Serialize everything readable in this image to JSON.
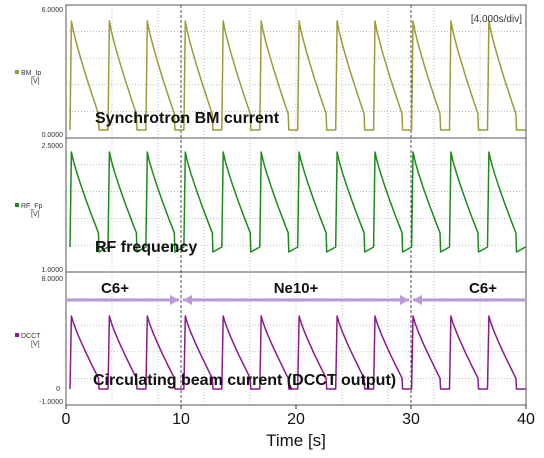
{
  "chart_data": {
    "type": "line",
    "scope_label": "[4.000s/div]",
    "x_axis": {
      "ticks": [
        "0",
        "10",
        "20",
        "30",
        "40"
      ],
      "label": "Time [s]",
      "range": [
        0,
        40
      ]
    },
    "grid": true,
    "panels": [
      {
        "id": "bm",
        "channel_label": "BM_Ip",
        "unit": "[V]",
        "y_top_label": "6.0000",
        "y_bottom_label": "0.0000",
        "caption": "Synchrotron BM current",
        "color": "#9c9a3a",
        "cycle_period_s": 3.3,
        "first_cycle_start_s": 0.35,
        "cycle_count": 12
      },
      {
        "id": "rf",
        "channel_label": "RF_Fp",
        "unit": "[V]",
        "y_top_label": "2.5000",
        "y_bottom_label": "1.0000",
        "caption": "RF frequency",
        "color": "#1a8a1a",
        "cycle_period_s": 3.3,
        "first_cycle_start_s": 0.35,
        "cycle_count": 12
      },
      {
        "id": "dcct",
        "channel_label": "DCCT",
        "unit": "[V]",
        "y_top_label": "8.0000",
        "y_bottom_label": "-1.0000",
        "y_zero_label": "0",
        "caption": "Circulating beam current (DCCT output)",
        "color": "#8a1a8a",
        "cycle_period_s": 3.3,
        "first_cycle_start_s": 0.35,
        "cycle_count": 12
      }
    ],
    "ion_segments": [
      {
        "label": "C6+",
        "start": 0,
        "end": 10
      },
      {
        "label": "Ne10+",
        "start": 10,
        "end": 30
      },
      {
        "label": "C6+",
        "start": 30,
        "end": 40
      }
    ],
    "arrow_color": "#b79ad6",
    "boundaries_s": [
      10,
      30
    ]
  }
}
